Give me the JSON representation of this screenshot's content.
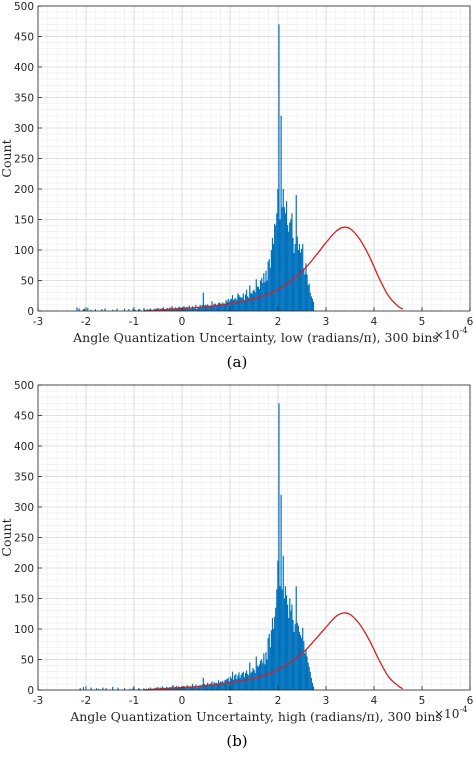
{
  "chart_data": [
    {
      "type": "histogram",
      "caption": "(a)",
      "xlabel": "Angle Quantization Uncertainty, low (radians/π), 300 bins",
      "ylabel": "Count",
      "x_multiplier": "×10",
      "x_multiplier_exp": "-4",
      "xlim": [
        -3,
        6
      ],
      "ylim": [
        0,
        500
      ],
      "xticks": [
        "-3",
        "-2",
        "-1",
        "0",
        "1",
        "2",
        "3",
        "4",
        "5",
        "6"
      ],
      "yticks": [
        "0",
        "50",
        "100",
        "150",
        "200",
        "250",
        "300",
        "350",
        "400",
        "450",
        "500"
      ],
      "grid": true,
      "bar_color": "#0072BD",
      "fit_color": "#D62020",
      "bins": {
        "x_start": -2.2,
        "bin_width": 0.0225,
        "counts": [
          6,
          0,
          4,
          0,
          0,
          0,
          3,
          4,
          0,
          0,
          5,
          0,
          0,
          2,
          0,
          0,
          0,
          3,
          0,
          0,
          0,
          0,
          0,
          3,
          0,
          0,
          4,
          0,
          0,
          0,
          0,
          0,
          0,
          2,
          0,
          0,
          0,
          4,
          0,
          0,
          0,
          0,
          0,
          0,
          4,
          0,
          0,
          0,
          3,
          0,
          0,
          0,
          4,
          0,
          2,
          0,
          0,
          3,
          3,
          0,
          0,
          0,
          5,
          2,
          0,
          3,
          0,
          3,
          4,
          2,
          0,
          2,
          4,
          3,
          4,
          5,
          2,
          4,
          3,
          5,
          6,
          3,
          3,
          4,
          5,
          3,
          6,
          4,
          8,
          5,
          4,
          6,
          5,
          4,
          6,
          7,
          5,
          3,
          6,
          8,
          6,
          5,
          7,
          5,
          9,
          3,
          4,
          8,
          5,
          4,
          10,
          3,
          6,
          6,
          10,
          7,
          10,
          30,
          9,
          10,
          9,
          11,
          8,
          8,
          9,
          16,
          9,
          12,
          12,
          10,
          10,
          13,
          14,
          12,
          12,
          14,
          12,
          12,
          18,
          15,
          20,
          16,
          19,
          20,
          26,
          18,
          20,
          21,
          18,
          29,
          26,
          23,
          22,
          22,
          29,
          18,
          27,
          35,
          24,
          22,
          42,
          30,
          28,
          33,
          35,
          31,
          52,
          40,
          40,
          36,
          50,
          54,
          46,
          62,
          47,
          66,
          50,
          81,
          85,
          71,
          100,
          120,
          110,
          143,
          140,
          160,
          200,
          470,
          150,
          320,
          170,
          200,
          170,
          160,
          180,
          141,
          130,
          145,
          150,
          160,
          120,
          95,
          110,
          190,
          122,
          100,
          110,
          96,
          102,
          110,
          70,
          60,
          78,
          60,
          42,
          45,
          30,
          24,
          20,
          15
        ]
      },
      "fit": {
        "x": [
          -0.8,
          -0.4,
          0.0,
          0.5,
          1.0,
          1.5,
          2.0,
          2.5,
          2.8,
          3.0,
          3.2,
          3.35,
          3.5,
          3.7,
          3.9,
          4.1,
          4.3,
          4.5,
          4.6
        ],
        "y": [
          0,
          2,
          4,
          7,
          12,
          20,
          35,
          65,
          92,
          112,
          130,
          137,
          135,
          118,
          90,
          55,
          25,
          8,
          3
        ]
      }
    },
    {
      "type": "histogram",
      "caption": "(b)",
      "xlabel": "Angle Quantization Uncertainty, high (radians/π), 300 bins",
      "ylabel": "Count",
      "x_multiplier": "×10",
      "x_multiplier_exp": "-4",
      "xlim": [
        -3,
        6
      ],
      "ylim": [
        0,
        500
      ],
      "xticks": [
        "-3",
        "-2",
        "-1",
        "0",
        "1",
        "2",
        "3",
        "4",
        "5",
        "6"
      ],
      "yticks": [
        "0",
        "50",
        "100",
        "150",
        "200",
        "250",
        "300",
        "350",
        "400",
        "450",
        "500"
      ],
      "grid": true,
      "bar_color": "#0072BD",
      "fit_color": "#D62020",
      "bins": {
        "x_start": -2.2,
        "bin_width": 0.0225,
        "counts": [
          0,
          0,
          0,
          3,
          0,
          0,
          5,
          0,
          0,
          0,
          0,
          0,
          0,
          4,
          0,
          0,
          0,
          0,
          3,
          0,
          2,
          0,
          0,
          0,
          4,
          0,
          0,
          3,
          0,
          0,
          0,
          0,
          0,
          5,
          0,
          0,
          0,
          0,
          4,
          0,
          0,
          0,
          0,
          0,
          3,
          0,
          0,
          0,
          0,
          2,
          0,
          0,
          4,
          0,
          0,
          0,
          0,
          3,
          2,
          0,
          0,
          0,
          3,
          0,
          2,
          0,
          3,
          0,
          4,
          2,
          0,
          3,
          2,
          4,
          3,
          5,
          2,
          4,
          3,
          6,
          4,
          2,
          3,
          5,
          4,
          3,
          5,
          4,
          6,
          8,
          4,
          5,
          7,
          4,
          6,
          5,
          4,
          3,
          6,
          7,
          5,
          4,
          8,
          5,
          6,
          5,
          4,
          10,
          6,
          5,
          9,
          4,
          7,
          5,
          8,
          6,
          9,
          20,
          10,
          8,
          9,
          12,
          9,
          10,
          11,
          14,
          8,
          13,
          11,
          12,
          10,
          16,
          12,
          14,
          13,
          15,
          11,
          16,
          17,
          18,
          20,
          14,
          22,
          19,
          30,
          17,
          24,
          26,
          18,
          24,
          29,
          20,
          25,
          28,
          30,
          21,
          28,
          32,
          26,
          24,
          45,
          28,
          30,
          36,
          33,
          28,
          55,
          40,
          38,
          42,
          48,
          50,
          44,
          60,
          42,
          62,
          50,
          85,
          92,
          70,
          98,
          118,
          100,
          120,
          135,
          165,
          212,
          470,
          170,
          320,
          165,
          220,
          150,
          170,
          155,
          140,
          118,
          150,
          130,
          140,
          115,
          95,
          108,
          170,
          110,
          105,
          95,
          90,
          85,
          102,
          80,
          60,
          65,
          55,
          45,
          38,
          30,
          20,
          12,
          6
        ]
      },
      "fit": {
        "x": [
          -0.8,
          -0.4,
          0.0,
          0.5,
          1.0,
          1.5,
          2.0,
          2.5,
          2.8,
          3.0,
          3.2,
          3.35,
          3.5,
          3.7,
          3.9,
          4.1,
          4.3,
          4.5,
          4.6
        ],
        "y": [
          0,
          2,
          4,
          7,
          12,
          19,
          33,
          60,
          85,
          103,
          120,
          126,
          124,
          108,
          82,
          50,
          22,
          7,
          2
        ]
      }
    }
  ]
}
